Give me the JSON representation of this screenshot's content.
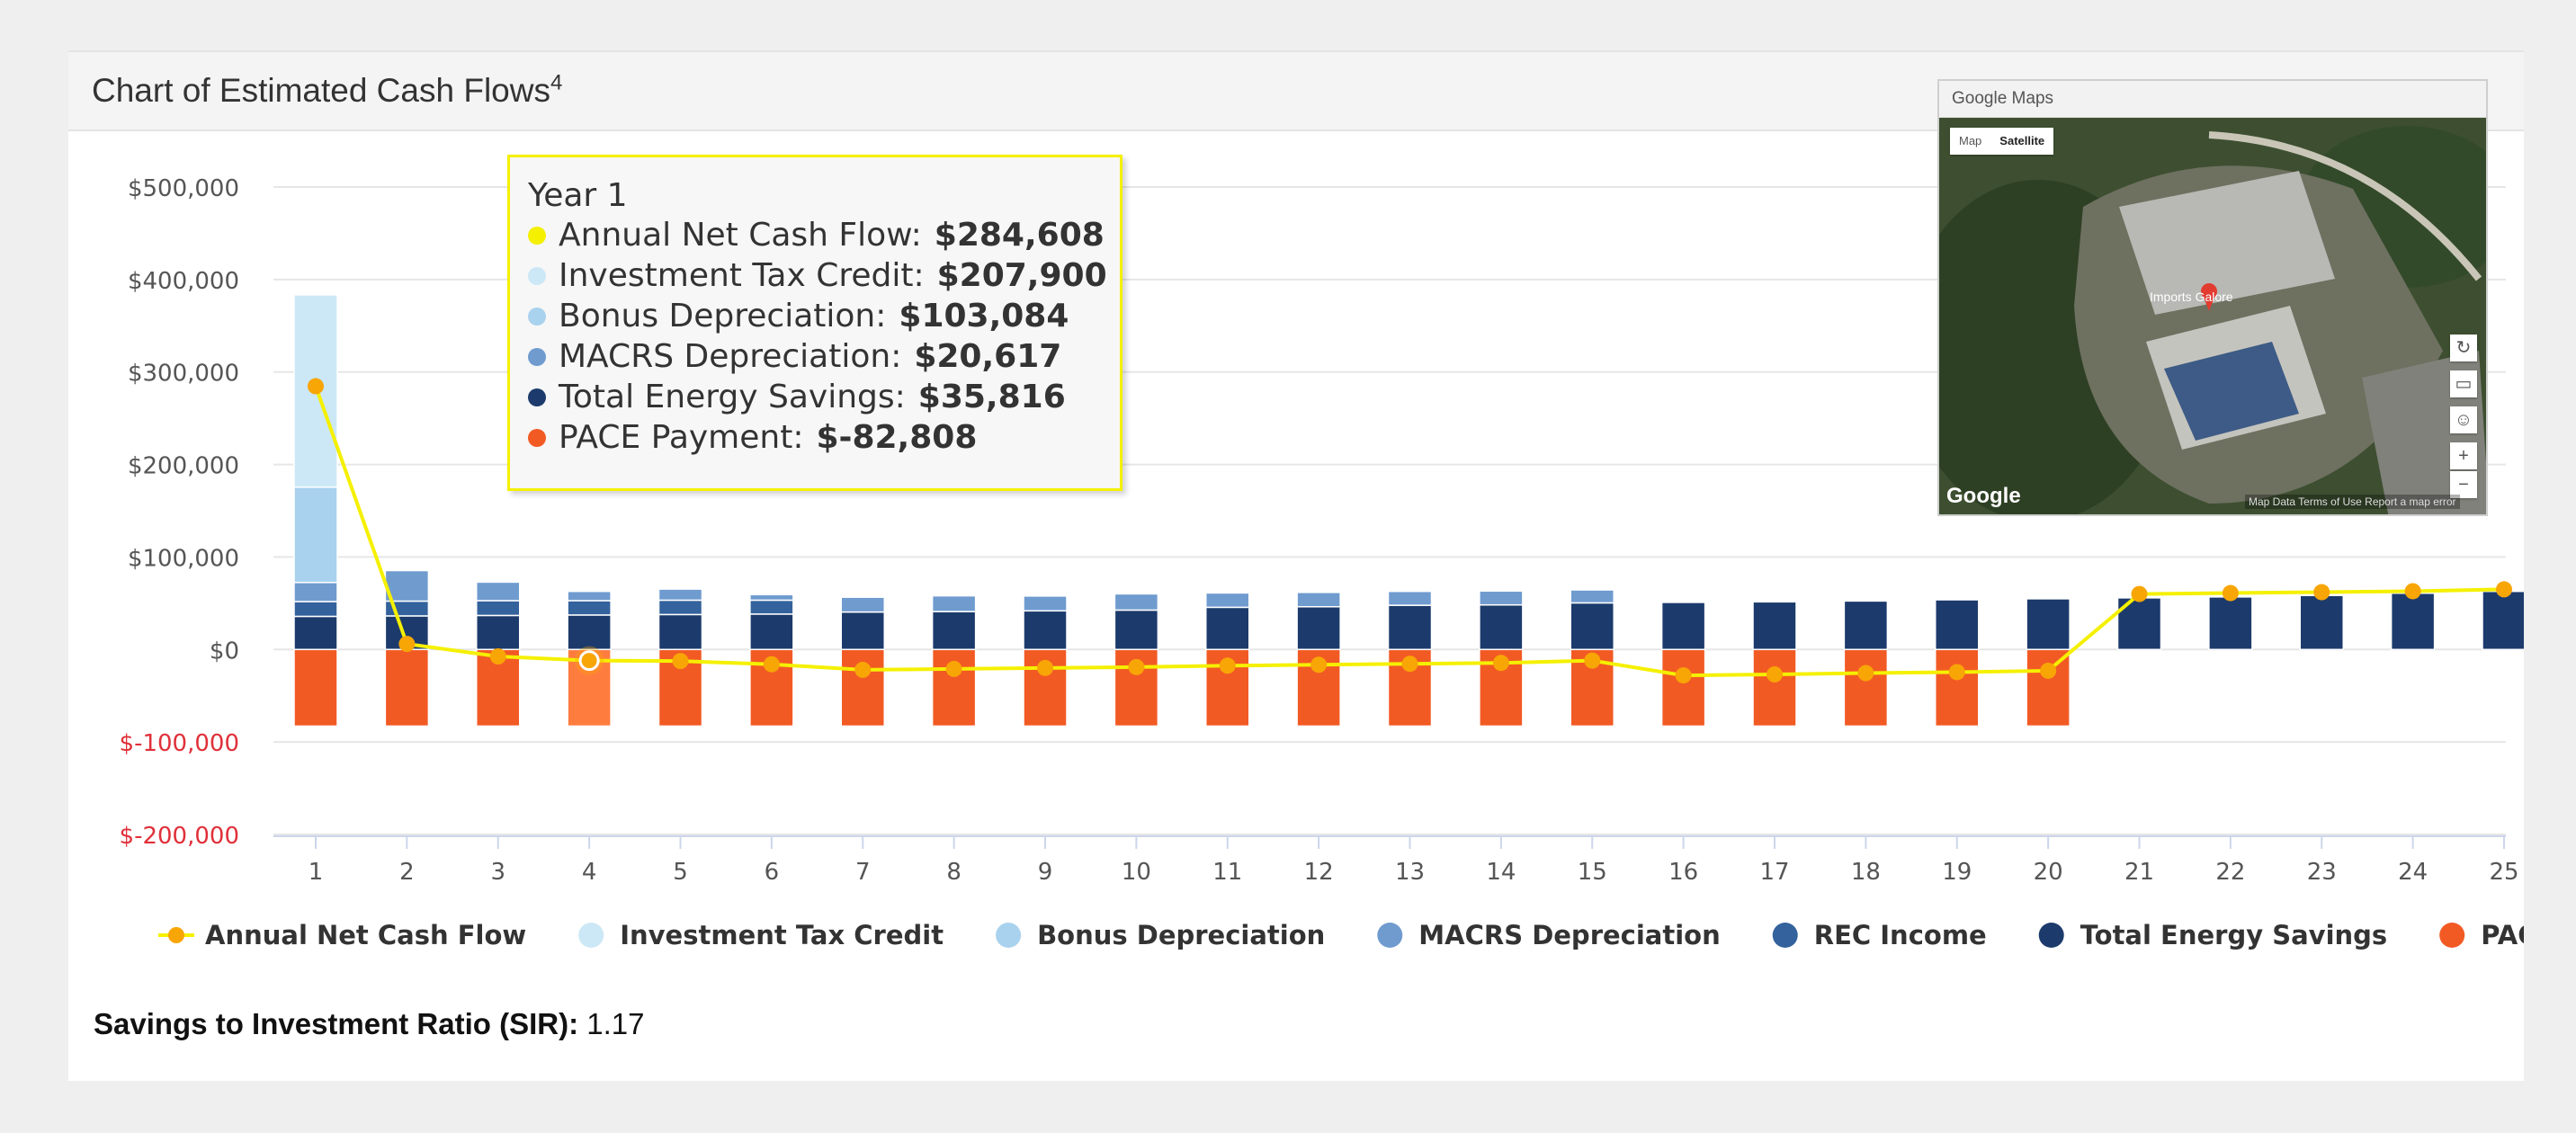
{
  "panel": {
    "title": "Chart of Estimated Cash Flows",
    "title_sup": "4"
  },
  "colors": {
    "net_cash_flow": "#f5f000",
    "net_cash_flow_marker": "#f8a506",
    "itc": "#cce8f6",
    "bonus": "#a9d2ee",
    "macrs": "#6f9bcf",
    "rec": "#33629c",
    "energy": "#1c3b6c",
    "pace": "#f25a24",
    "pace_hover": "#ff7c3f"
  },
  "chart_data": {
    "type": "bar",
    "stacked": true,
    "title": "",
    "xlabel": "",
    "ylabel": "",
    "ylim": [
      -200000,
      500000
    ],
    "y_ticks": [
      500000,
      400000,
      300000,
      200000,
      100000,
      0,
      -100000,
      -200000
    ],
    "y_tick_labels": [
      "$500,000",
      "$400,000",
      "$300,000",
      "$200,000",
      "$100,000",
      "$0",
      "$-100,000",
      "$-200,000"
    ],
    "categories": [
      "1",
      "2",
      "3",
      "4",
      "5",
      "6",
      "7",
      "8",
      "9",
      "10",
      "11",
      "12",
      "13",
      "14",
      "15",
      "16",
      "17",
      "18",
      "19",
      "20",
      "21",
      "22",
      "23",
      "24",
      "25"
    ],
    "legend_position": "bottom",
    "grid": true,
    "series": [
      {
        "name": "Total Energy Savings",
        "key": "energy",
        "kind": "bar",
        "values": [
          35816,
          36300,
          36800,
          37300,
          37800,
          38300,
          40500,
          41000,
          41800,
          42600,
          45600,
          46200,
          47800,
          48200,
          50400,
          50900,
          51500,
          52400,
          53700,
          54800,
          55800,
          56800,
          58400,
          60800,
          62800
        ]
      },
      {
        "name": "REC Income",
        "key": "rec",
        "kind": "bar",
        "values": [
          16000,
          16000,
          16000,
          15500,
          15500,
          15000,
          0,
          0,
          0,
          0,
          0,
          0,
          0,
          0,
          0,
          0,
          0,
          0,
          0,
          0,
          0,
          0,
          0,
          0,
          0
        ]
      },
      {
        "name": "MACRS Depreciation",
        "key": "macrs",
        "kind": "bar",
        "values": [
          20617,
          33000,
          20000,
          10000,
          12000,
          6000,
          16000,
          17000,
          16000,
          17500,
          15500,
          15500,
          15000,
          15000,
          14000,
          0,
          0,
          0,
          0,
          0,
          0,
          0,
          0,
          0,
          0
        ]
      },
      {
        "name": "Bonus Depreciation",
        "key": "bonus",
        "kind": "bar",
        "values": [
          103084,
          0,
          0,
          0,
          0,
          0,
          0,
          0,
          0,
          0,
          0,
          0,
          0,
          0,
          0,
          0,
          0,
          0,
          0,
          0,
          0,
          0,
          0,
          0,
          0
        ]
      },
      {
        "name": "Investment Tax Credit",
        "key": "itc",
        "kind": "bar",
        "values": [
          207900,
          0,
          0,
          0,
          0,
          0,
          0,
          0,
          0,
          0,
          0,
          0,
          0,
          0,
          0,
          0,
          0,
          0,
          0,
          0,
          0,
          0,
          0,
          0,
          0
        ]
      },
      {
        "name": "PACE Payment",
        "key": "pace",
        "kind": "bar",
        "values": [
          -82808,
          -82808,
          -82808,
          -82808,
          -82808,
          -82808,
          -82808,
          -82808,
          -82808,
          -82808,
          -82808,
          -82808,
          -82808,
          -82808,
          -82808,
          -82808,
          -82808,
          -82808,
          -82808,
          -82808,
          0,
          0,
          0,
          0,
          0
        ]
      },
      {
        "name": "Annual Net Cash Flow",
        "key": "net_cash_flow",
        "kind": "line",
        "values": [
          284608,
          6000,
          -7500,
          -12000,
          -12500,
          -16000,
          -22000,
          -21000,
          -20000,
          -19000,
          -17500,
          -16500,
          -15500,
          -14500,
          -12000,
          -28000,
          -27000,
          -25500,
          -24500,
          -23000,
          60000,
          61000,
          62000,
          63000,
          65000
        ]
      }
    ],
    "highlight_index": 3
  },
  "legend": [
    {
      "label": "Annual Net Cash Flow",
      "key": "net_cash_flow",
      "line": true
    },
    {
      "label": "Investment Tax Credit",
      "key": "itc"
    },
    {
      "label": "Bonus Depreciation",
      "key": "bonus"
    },
    {
      "label": "MACRS Depreciation",
      "key": "macrs"
    },
    {
      "label": "REC Income",
      "key": "rec"
    },
    {
      "label": "Total Energy Savings",
      "key": "energy"
    },
    {
      "label": "PACE Payment",
      "key": "pace"
    }
  ],
  "tooltip": {
    "title": "Year 1",
    "rows": [
      {
        "label": "Annual Net Cash Flow:",
        "value": "$284,608",
        "color": "#f5f000"
      },
      {
        "label": "Investment Tax Credit:",
        "value": "$207,900",
        "color": "#cce8f6"
      },
      {
        "label": "Bonus Depreciation:",
        "value": "$103,084",
        "color": "#a9d2ee"
      },
      {
        "label": "MACRS Depreciation:",
        "value": "$20,617",
        "color": "#6f9bcf"
      },
      {
        "label": "Total Energy Savings:",
        "value": "$35,816",
        "color": "#1c3b6c"
      },
      {
        "label": "PACE Payment:",
        "value": "$-82,808",
        "color": "#f25a24"
      }
    ]
  },
  "map": {
    "header": "Google Maps",
    "type_map": "Map",
    "type_satellite": "Satellite",
    "brand": "Google",
    "footer": "Map Data   Terms of Use   Report a map error",
    "place_label": "Imports Galore"
  },
  "sir": {
    "label": "Savings to Investment Ratio (SIR):",
    "value": "1.17"
  }
}
